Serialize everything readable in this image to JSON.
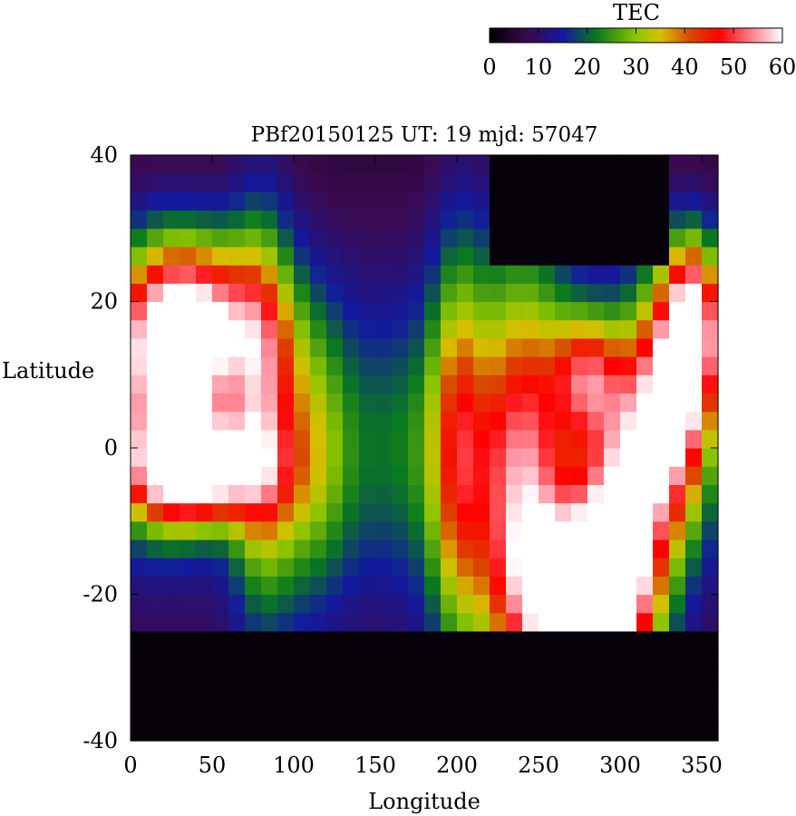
{
  "chart_data": {
    "type": "heatmap",
    "title": "PBf20150125  UT: 19  mjd: 57047",
    "xlabel": "Longitude",
    "ylabel": "Latitude",
    "xlim": [
      0,
      360
    ],
    "ylim": [
      -40,
      40
    ],
    "x_ticks": [
      0,
      50,
      100,
      150,
      200,
      250,
      300,
      350
    ],
    "y_ticks": [
      -40,
      -20,
      0,
      20,
      40
    ],
    "colorbar": {
      "label": "TEC",
      "range": [
        0,
        60
      ],
      "ticks": [
        0,
        10,
        20,
        30,
        40,
        50,
        60
      ],
      "stops": [
        {
          "v": 0,
          "color": "#000000"
        },
        {
          "v": 8,
          "color": "#3a0a50"
        },
        {
          "v": 15,
          "color": "#121a9e"
        },
        {
          "v": 22,
          "color": "#0a7a1e"
        },
        {
          "v": 30,
          "color": "#8cc400"
        },
        {
          "v": 35,
          "color": "#d6c000"
        },
        {
          "v": 41,
          "color": "#d84a00"
        },
        {
          "v": 47,
          "color": "#ff0000"
        },
        {
          "v": 55,
          "color": "#ff9aa8"
        },
        {
          "v": 60,
          "color": "#ffffff"
        }
      ]
    },
    "grid": {
      "lon_step": 10,
      "lat_step": 2.5,
      "lon_start": 0,
      "lat_start": -40,
      "cols": 36,
      "rows": 32
    },
    "tec_features": [
      {
        "lon": 40,
        "lat": 17,
        "peak": 50,
        "sx": 30,
        "sy": 8
      },
      {
        "lon": 40,
        "lat": -3,
        "peak": 60,
        "sx": 28,
        "sy": 5
      },
      {
        "lon": 20,
        "lat": 8,
        "peak": 46,
        "sx": 25,
        "sy": 12
      },
      {
        "lon": 80,
        "lat": 5,
        "peak": 36,
        "sx": 14,
        "sy": 18
      },
      {
        "lon": 110,
        "lat": 0,
        "peak": 25,
        "sx": 18,
        "sy": 14
      },
      {
        "lon": 170,
        "lat": 0,
        "peak": 14,
        "sx": 30,
        "sy": 14
      },
      {
        "lon": 200,
        "lat": 0,
        "peak": 28,
        "sx": 12,
        "sy": 20
      },
      {
        "lon": 240,
        "lat": -5,
        "peak": 52,
        "sx": 22,
        "sy": 20
      },
      {
        "lon": 275,
        "lat": -20,
        "peak": 60,
        "sx": 25,
        "sy": 8
      },
      {
        "lon": 300,
        "lat": -12,
        "peak": 56,
        "sx": 18,
        "sy": 14
      },
      {
        "lon": 330,
        "lat": 5,
        "peak": 60,
        "sx": 18,
        "sy": 12
      },
      {
        "lon": 345,
        "lat": 17,
        "peak": 55,
        "sx": 12,
        "sy": 8
      },
      {
        "lon": 280,
        "lat": 10,
        "peak": 35,
        "sx": 15,
        "sy": 6
      }
    ],
    "dark_regions": [
      {
        "lat_below": -24
      },
      {
        "lat_above": 26,
        "lon_from": 220,
        "lon_to": 330
      }
    ]
  }
}
